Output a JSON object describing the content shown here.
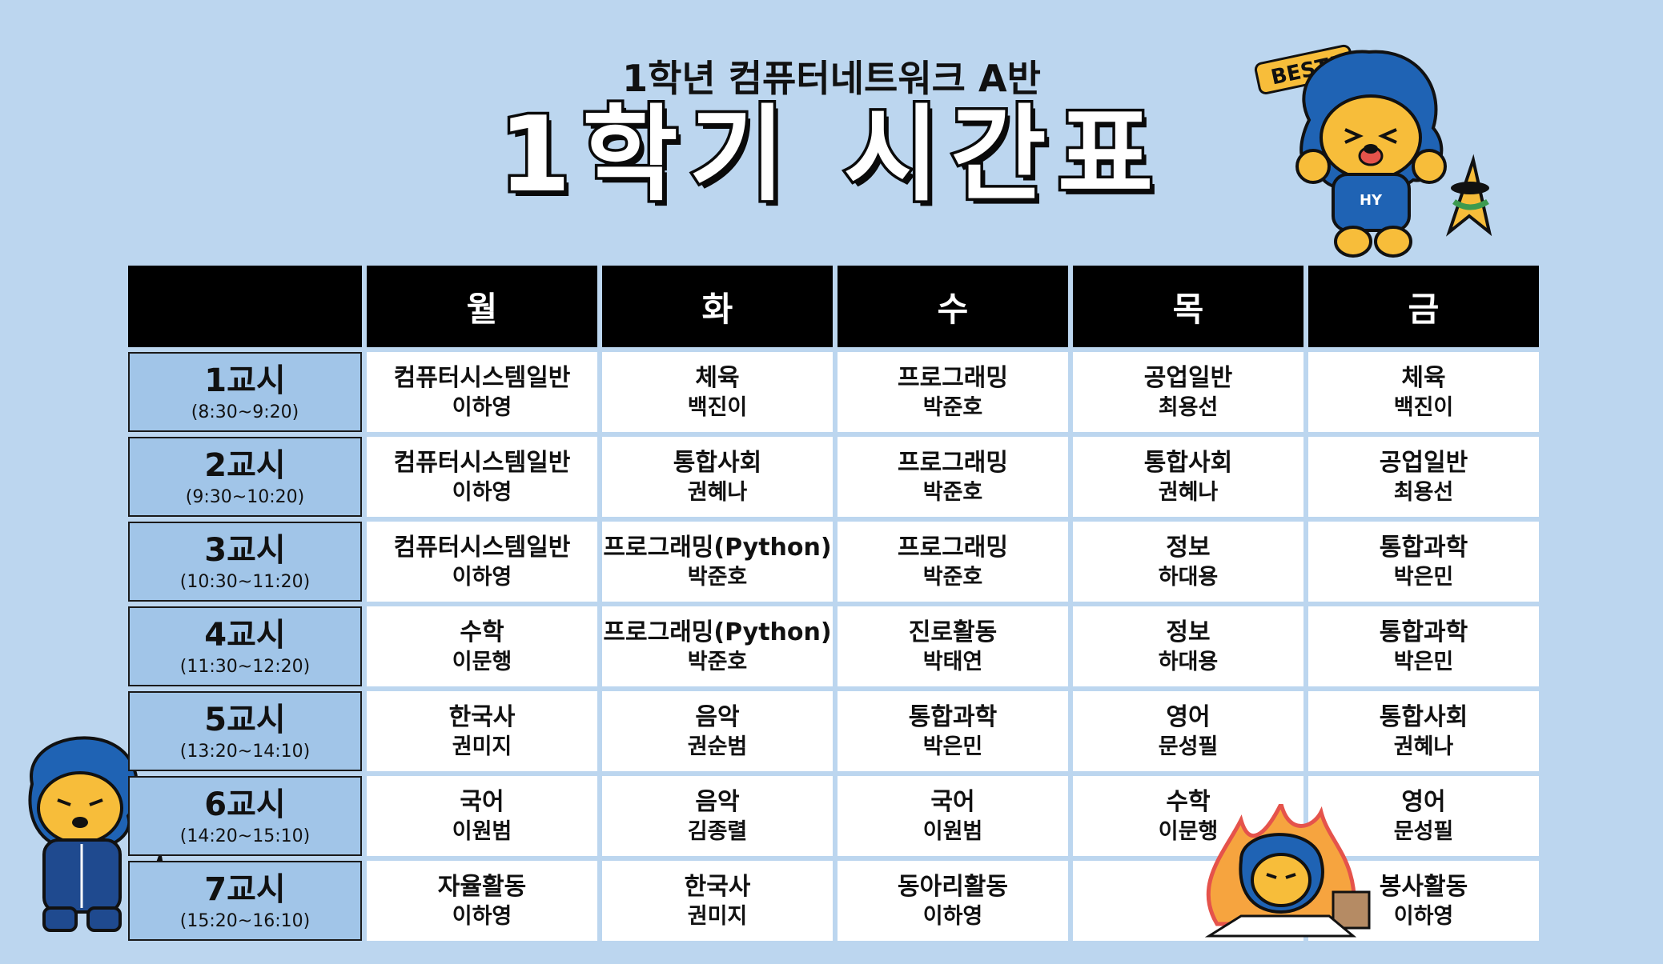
{
  "header": {
    "subtitle": "1학년 컴퓨터네트워크 A반",
    "title": "1학기 시간표"
  },
  "mascot": {
    "badge": "BEST!",
    "shirt": "HY"
  },
  "days": [
    "월",
    "화",
    "수",
    "목",
    "금"
  ],
  "periods": [
    {
      "name": "1교시",
      "time": "(8:30~9:20)"
    },
    {
      "name": "2교시",
      "time": "(9:30~10:20)"
    },
    {
      "name": "3교시",
      "time": "(10:30~11:20)"
    },
    {
      "name": "4교시",
      "time": "(11:30~12:20)"
    },
    {
      "name": "5교시",
      "time": "(13:20~14:10)"
    },
    {
      "name": "6교시",
      "time": "(14:20~15:10)"
    },
    {
      "name": "7교시",
      "time": "(15:20~16:10)"
    }
  ],
  "schedule": [
    [
      {
        "subject": "컴퓨터시스템일반",
        "teacher": "이하영"
      },
      {
        "subject": "체육",
        "teacher": "백진이"
      },
      {
        "subject": "프로그래밍",
        "teacher": "박준호"
      },
      {
        "subject": "공업일반",
        "teacher": "최용선"
      },
      {
        "subject": "체육",
        "teacher": "백진이"
      }
    ],
    [
      {
        "subject": "컴퓨터시스템일반",
        "teacher": "이하영"
      },
      {
        "subject": "통합사회",
        "teacher": "권혜나"
      },
      {
        "subject": "프로그래밍",
        "teacher": "박준호"
      },
      {
        "subject": "통합사회",
        "teacher": "권혜나"
      },
      {
        "subject": "공업일반",
        "teacher": "최용선"
      }
    ],
    [
      {
        "subject": "컴퓨터시스템일반",
        "teacher": "이하영"
      },
      {
        "subject": "프로그래밍(Python)",
        "teacher": "박준호"
      },
      {
        "subject": "프로그래밍",
        "teacher": "박준호"
      },
      {
        "subject": "정보",
        "teacher": "하대용"
      },
      {
        "subject": "통합과학",
        "teacher": "박은민"
      }
    ],
    [
      {
        "subject": "수학",
        "teacher": "이문행"
      },
      {
        "subject": "프로그래밍(Python)",
        "teacher": "박준호"
      },
      {
        "subject": "진로활동",
        "teacher": "박태연"
      },
      {
        "subject": "정보",
        "teacher": "하대용"
      },
      {
        "subject": "통합과학",
        "teacher": "박은민"
      }
    ],
    [
      {
        "subject": "한국사",
        "teacher": "권미지"
      },
      {
        "subject": "음악",
        "teacher": "권순범"
      },
      {
        "subject": "통합과학",
        "teacher": "박은민"
      },
      {
        "subject": "영어",
        "teacher": "문성필"
      },
      {
        "subject": "통합사회",
        "teacher": "권혜나"
      }
    ],
    [
      {
        "subject": "국어",
        "teacher": "이원범"
      },
      {
        "subject": "음악",
        "teacher": "김종렬"
      },
      {
        "subject": "국어",
        "teacher": "이원범"
      },
      {
        "subject": "수학",
        "teacher": "이문행"
      },
      {
        "subject": "영어",
        "teacher": "문성필"
      }
    ],
    [
      {
        "subject": "자율활동",
        "teacher": "이하영"
      },
      {
        "subject": "한국사",
        "teacher": "권미지"
      },
      {
        "subject": "동아리활동",
        "teacher": "이하영"
      },
      {
        "subject": "",
        "teacher": ""
      },
      {
        "subject": "봉사활동",
        "teacher": "이하영"
      }
    ]
  ],
  "colors": {
    "background": "#bcd6ef",
    "period_cell": "#a1c5e8",
    "header_cell": "#000000",
    "mascot_blue": "#1f63b4",
    "mascot_face": "#f7bd3a"
  }
}
